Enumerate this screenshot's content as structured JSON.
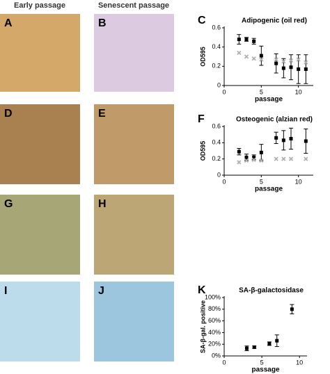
{
  "headers": [
    "Early passage",
    "Senescent passage"
  ],
  "panels": [
    "A",
    "B",
    "C",
    "D",
    "E",
    "F",
    "G",
    "H",
    "I",
    "J",
    "K"
  ],
  "chart_data": [
    {
      "type": "scatter",
      "title": "Adipogenic (oil red)",
      "xlabel": "passage",
      "ylabel": "OD595",
      "xlim": [
        0,
        12
      ],
      "xticks": [
        0,
        5,
        10
      ],
      "ylim": [
        0,
        0.6
      ],
      "yticks": [
        0,
        0.2,
        0.4,
        0.6
      ],
      "series": [
        {
          "color": "#000000",
          "x": [
            2,
            3,
            4,
            5,
            7,
            8,
            9,
            10,
            11
          ],
          "values": [
            0.48,
            0.48,
            0.46,
            0.31,
            0.23,
            0.18,
            0.19,
            0.17,
            0.17
          ],
          "errors": [
            0.05,
            0.02,
            0.03,
            0.1,
            0.1,
            0.1,
            0.13,
            0.15,
            0.15
          ]
        },
        {
          "color": "#b0b0b0",
          "x": [
            2,
            3,
            4,
            5,
            7,
            8,
            9,
            10,
            11
          ],
          "values": [
            0.34,
            0.3,
            0.28,
            0.27,
            0.27,
            0.25,
            0.26,
            0.27,
            0.24
          ]
        }
      ]
    },
    {
      "type": "scatter",
      "title": "Osteogenic (alzian red)",
      "xlabel": "passage",
      "ylabel": "OD595",
      "xlim": [
        0,
        12
      ],
      "xticks": [
        0,
        5,
        10
      ],
      "ylim": [
        0,
        0.6
      ],
      "yticks": [
        0,
        0.2,
        0.4,
        0.6
      ],
      "series": [
        {
          "color": "#000000",
          "x": [
            2,
            3,
            4,
            5,
            7,
            8,
            9,
            11
          ],
          "values": [
            0.29,
            0.22,
            0.22,
            0.28,
            0.46,
            0.43,
            0.45,
            0.42
          ],
          "errors": [
            0.04,
            0.04,
            0.03,
            0.1,
            0.07,
            0.12,
            0.13,
            0.15
          ]
        },
        {
          "color": "#b0b0b0",
          "x": [
            2,
            3,
            4,
            5,
            7,
            8,
            9,
            11
          ],
          "values": [
            0.16,
            0.18,
            0.19,
            0.18,
            0.2,
            0.2,
            0.2,
            0.2
          ]
        }
      ]
    },
    {
      "type": "scatter",
      "title": "SA-β-galactosidase",
      "xlabel": "passage",
      "ylabel": "SA-β-gal. positive",
      "xlim": [
        0,
        11
      ],
      "xticks": [
        0,
        5,
        10
      ],
      "ylim": [
        0,
        100
      ],
      "yticks": [
        {
          "value": 0,
          "label": "0%"
        },
        {
          "value": 20,
          "label": "20%"
        },
        {
          "value": 40,
          "label": "40%"
        },
        {
          "value": 60,
          "label": "60%"
        },
        {
          "value": 80,
          "label": "80%"
        },
        {
          "value": 100,
          "label": "100%"
        }
      ],
      "series": [
        {
          "color": "#000000",
          "x": [
            3,
            4,
            6,
            7,
            9
          ],
          "values": [
            13,
            15,
            21,
            26,
            80
          ],
          "errors": [
            4,
            2,
            3,
            10,
            8
          ]
        }
      ]
    }
  ]
}
